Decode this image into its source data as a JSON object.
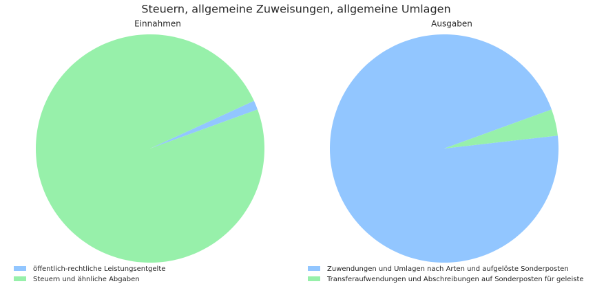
{
  "title": "Steuern, allgemeine Zuweisungen, allgemeine Umlagen",
  "chart_data": [
    {
      "type": "pie",
      "title": "Einnahmen",
      "categories": [
        "öffentlich-rechtliche Leistungsentgelte",
        "Steuern und ähnliche Abgaben"
      ],
      "values": [
        1.3,
        98.7
      ],
      "colors": [
        "#92c6ff",
        "#97f0aa"
      ]
    },
    {
      "type": "pie",
      "title": "Ausgaben",
      "categories": [
        "Zuwendungen und Umlagen nach Arten und aufgelöste Sonderposten",
        "Transferaufwendungen und Abschreibungen auf Sonderposten für geleiste"
      ],
      "values": [
        96.25,
        3.75
      ],
      "colors": [
        "#92c6ff",
        "#97f0aa"
      ]
    }
  ]
}
